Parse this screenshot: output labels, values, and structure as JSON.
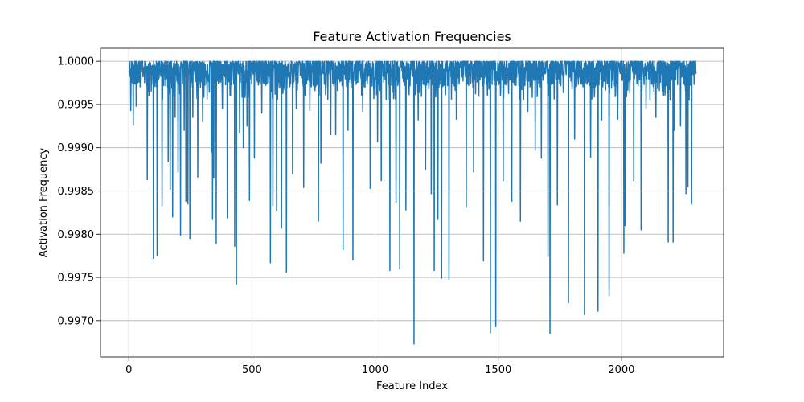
{
  "chart_data": {
    "type": "line",
    "title": "Feature Activation Frequencies",
    "xlabel": "Feature Index",
    "ylabel": "Activation Frequency",
    "xlim": [
      -115,
      2415
    ],
    "ylim": [
      0.99658,
      1.00015
    ],
    "xticks": [
      0,
      500,
      1000,
      1500,
      2000
    ],
    "xtick_labels": [
      "0",
      "500",
      "1000",
      "1500",
      "2000"
    ],
    "yticks": [
      0.997,
      0.9975,
      0.998,
      0.9985,
      0.999,
      0.9995,
      1.0
    ],
    "ytick_labels": [
      "0.9970",
      "0.9975",
      "0.9980",
      "0.9985",
      "0.9990",
      "0.9995",
      "1.0000"
    ],
    "grid": true,
    "n_features": 2304,
    "baseline_value": 0.99985,
    "dips": [
      {
        "x": 8,
        "y": 0.99943
      },
      {
        "x": 18,
        "y": 0.99926
      },
      {
        "x": 30,
        "y": 0.99948
      },
      {
        "x": 75,
        "y": 0.99863
      },
      {
        "x": 100,
        "y": 0.99772
      },
      {
        "x": 115,
        "y": 0.99775
      },
      {
        "x": 135,
        "y": 0.99833
      },
      {
        "x": 160,
        "y": 0.99884
      },
      {
        "x": 168,
        "y": 0.99852
      },
      {
        "x": 178,
        "y": 0.9982
      },
      {
        "x": 188,
        "y": 0.99935
      },
      {
        "x": 200,
        "y": 0.99872
      },
      {
        "x": 210,
        "y": 0.99799
      },
      {
        "x": 225,
        "y": 0.9992
      },
      {
        "x": 232,
        "y": 0.99838
      },
      {
        "x": 240,
        "y": 0.99835
      },
      {
        "x": 248,
        "y": 0.99795
      },
      {
        "x": 260,
        "y": 0.99935
      },
      {
        "x": 280,
        "y": 0.99866
      },
      {
        "x": 300,
        "y": 0.9993
      },
      {
        "x": 335,
        "y": 0.99895
      },
      {
        "x": 340,
        "y": 0.99817
      },
      {
        "x": 345,
        "y": 0.99865
      },
      {
        "x": 355,
        "y": 0.99789
      },
      {
        "x": 380,
        "y": 0.99945
      },
      {
        "x": 400,
        "y": 0.99819
      },
      {
        "x": 430,
        "y": 0.99786
      },
      {
        "x": 437,
        "y": 0.99742
      },
      {
        "x": 450,
        "y": 0.99917
      },
      {
        "x": 465,
        "y": 0.999
      },
      {
        "x": 480,
        "y": 0.99925
      },
      {
        "x": 490,
        "y": 0.99839
      },
      {
        "x": 510,
        "y": 0.99888
      },
      {
        "x": 540,
        "y": 0.9994
      },
      {
        "x": 575,
        "y": 0.99767
      },
      {
        "x": 585,
        "y": 0.99833
      },
      {
        "x": 600,
        "y": 0.99827
      },
      {
        "x": 620,
        "y": 0.99807
      },
      {
        "x": 640,
        "y": 0.99756
      },
      {
        "x": 665,
        "y": 0.9987
      },
      {
        "x": 680,
        "y": 0.99945
      },
      {
        "x": 710,
        "y": 0.99854
      },
      {
        "x": 735,
        "y": 0.99943
      },
      {
        "x": 770,
        "y": 0.99815
      },
      {
        "x": 780,
        "y": 0.99882
      },
      {
        "x": 820,
        "y": 0.99915
      },
      {
        "x": 840,
        "y": 0.99915
      },
      {
        "x": 870,
        "y": 0.99782
      },
      {
        "x": 890,
        "y": 0.9992
      },
      {
        "x": 910,
        "y": 0.9977
      },
      {
        "x": 950,
        "y": 0.99942
      },
      {
        "x": 980,
        "y": 0.99853
      },
      {
        "x": 1010,
        "y": 0.99907
      },
      {
        "x": 1025,
        "y": 0.99862
      },
      {
        "x": 1060,
        "y": 0.99758
      },
      {
        "x": 1085,
        "y": 0.99837
      },
      {
        "x": 1100,
        "y": 0.9976
      },
      {
        "x": 1125,
        "y": 0.99828
      },
      {
        "x": 1158,
        "y": 0.99673
      },
      {
        "x": 1175,
        "y": 0.99932
      },
      {
        "x": 1205,
        "y": 0.99875
      },
      {
        "x": 1228,
        "y": 0.99847
      },
      {
        "x": 1240,
        "y": 0.99758
      },
      {
        "x": 1255,
        "y": 0.99817
      },
      {
        "x": 1270,
        "y": 0.99749
      },
      {
        "x": 1300,
        "y": 0.99748
      },
      {
        "x": 1330,
        "y": 0.99933
      },
      {
        "x": 1370,
        "y": 0.99831
      },
      {
        "x": 1400,
        "y": 0.99872
      },
      {
        "x": 1440,
        "y": 0.99769
      },
      {
        "x": 1468,
        "y": 0.99686
      },
      {
        "x": 1490,
        "y": 0.99693
      },
      {
        "x": 1520,
        "y": 0.99862
      },
      {
        "x": 1555,
        "y": 0.99838
      },
      {
        "x": 1590,
        "y": 0.99815
      },
      {
        "x": 1620,
        "y": 0.99942
      },
      {
        "x": 1650,
        "y": 0.99897
      },
      {
        "x": 1675,
        "y": 0.99888
      },
      {
        "x": 1702,
        "y": 0.99774
      },
      {
        "x": 1710,
        "y": 0.99685
      },
      {
        "x": 1740,
        "y": 0.99834
      },
      {
        "x": 1785,
        "y": 0.99721
      },
      {
        "x": 1810,
        "y": 0.9991
      },
      {
        "x": 1850,
        "y": 0.99707
      },
      {
        "x": 1875,
        "y": 0.99889
      },
      {
        "x": 1905,
        "y": 0.99711
      },
      {
        "x": 1920,
        "y": 0.99932
      },
      {
        "x": 1950,
        "y": 0.99729
      },
      {
        "x": 1985,
        "y": 0.99933
      },
      {
        "x": 2010,
        "y": 0.99778
      },
      {
        "x": 2015,
        "y": 0.9981
      },
      {
        "x": 2050,
        "y": 0.99862
      },
      {
        "x": 2080,
        "y": 0.99805
      },
      {
        "x": 2100,
        "y": 0.99945
      },
      {
        "x": 2140,
        "y": 0.99935
      },
      {
        "x": 2190,
        "y": 0.99791
      },
      {
        "x": 2210,
        "y": 0.99791
      },
      {
        "x": 2215,
        "y": 0.9992
      },
      {
        "x": 2240,
        "y": 0.99925
      },
      {
        "x": 2262,
        "y": 0.99847
      },
      {
        "x": 2270,
        "y": 0.99855
      },
      {
        "x": 2285,
        "y": 0.99835
      }
    ],
    "series": [
      {
        "color": "#1f77b4"
      }
    ]
  }
}
